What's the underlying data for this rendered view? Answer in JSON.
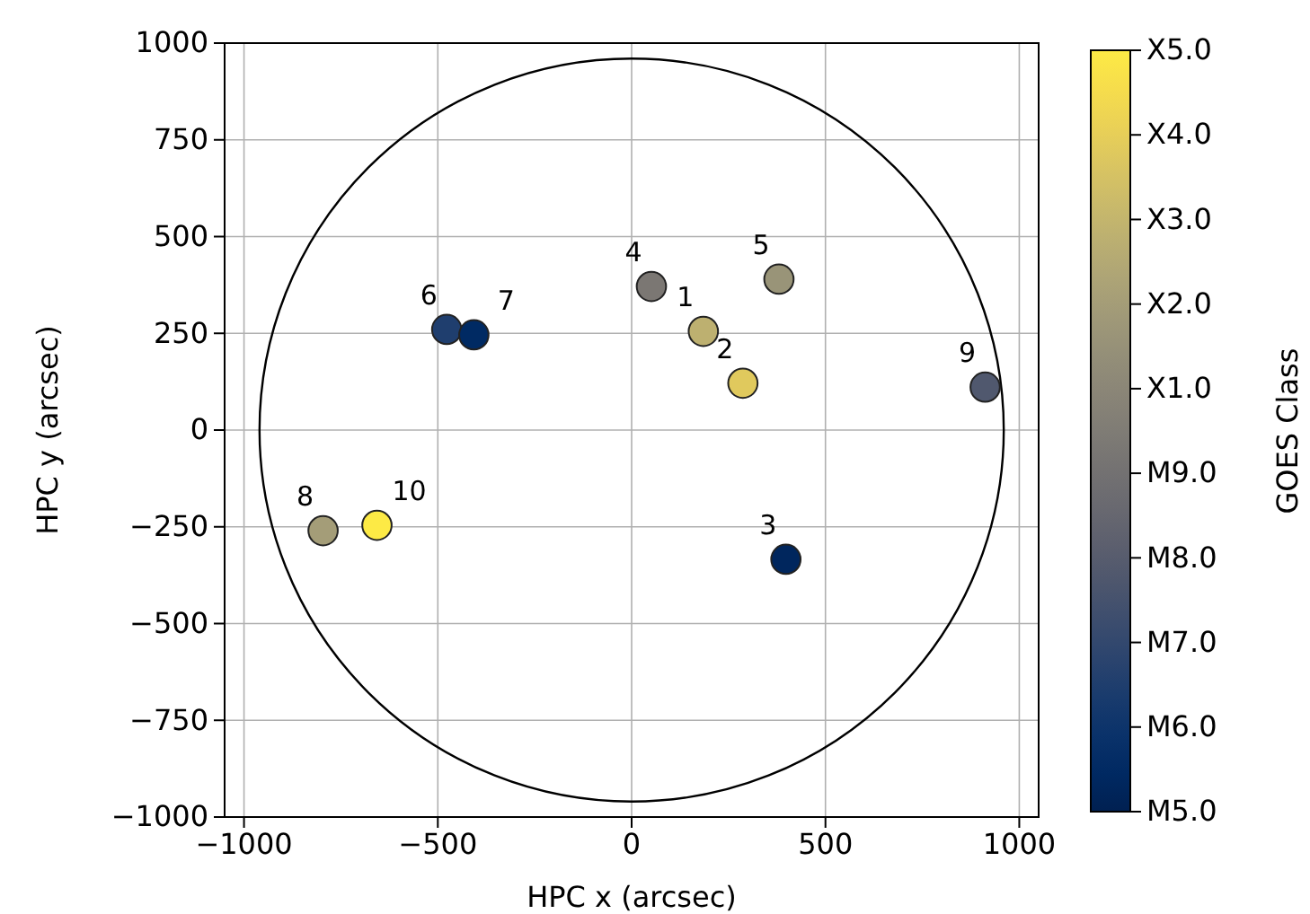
{
  "chart_data": {
    "type": "scatter",
    "xlabel": "HPC x (arcsec)",
    "ylabel": "HPC y (arcsec)",
    "clabel": "GOES Class",
    "xlim": [
      -1050,
      1050
    ],
    "xticks": [
      -1000,
      -500,
      0,
      500,
      1000
    ],
    "ylim": [
      -1000,
      1000
    ],
    "yticks": [
      -1000,
      -750,
      -500,
      -250,
      0,
      250,
      500,
      750,
      1000
    ],
    "grid": true,
    "marker": "circle",
    "clim": [
      0,
      9
    ],
    "cticks": [
      {
        "value": 0,
        "label": "M5.0"
      },
      {
        "value": 1,
        "label": "M6.0"
      },
      {
        "value": 2,
        "label": "M7.0"
      },
      {
        "value": 3,
        "label": "M8.0"
      },
      {
        "value": 4,
        "label": "M9.0"
      },
      {
        "value": 5,
        "label": "X1.0"
      },
      {
        "value": 6,
        "label": "X2.0"
      },
      {
        "value": 7,
        "label": "X3.0"
      },
      {
        "value": 8,
        "label": "X4.0"
      },
      {
        "value": 9,
        "label": "X5.0"
      }
    ],
    "series": [
      {
        "x": [
          185,
          287,
          398,
          51,
          380,
          -477,
          -407,
          -796,
          912,
          -657
        ],
        "values": [
          255,
          121,
          -334,
          371,
          390,
          260,
          246,
          -260,
          111,
          -246
        ],
        "cvalues": [
          6.8,
          7.8,
          0.3,
          4.3,
          5.6,
          1.5,
          0.5,
          6,
          2.8,
          9
        ]
      }
    ],
    "annotations": [
      {
        "text": "1",
        "x": 185,
        "y": 255
      },
      {
        "text": "2",
        "x": 287,
        "y": 121
      },
      {
        "text": "3",
        "x": 398,
        "y": -334
      },
      {
        "text": "4",
        "x": 51,
        "y": 371
      },
      {
        "text": "5",
        "x": 380,
        "y": 390
      },
      {
        "text": "6",
        "x": -477,
        "y": 260
      },
      {
        "text": "7",
        "x": -407,
        "y": 246
      },
      {
        "text": "8",
        "x": -796,
        "y": -260
      },
      {
        "text": "9",
        "x": 912,
        "y": 111
      },
      {
        "text": "10",
        "x": -657,
        "y": -246
      }
    ]
  }
}
